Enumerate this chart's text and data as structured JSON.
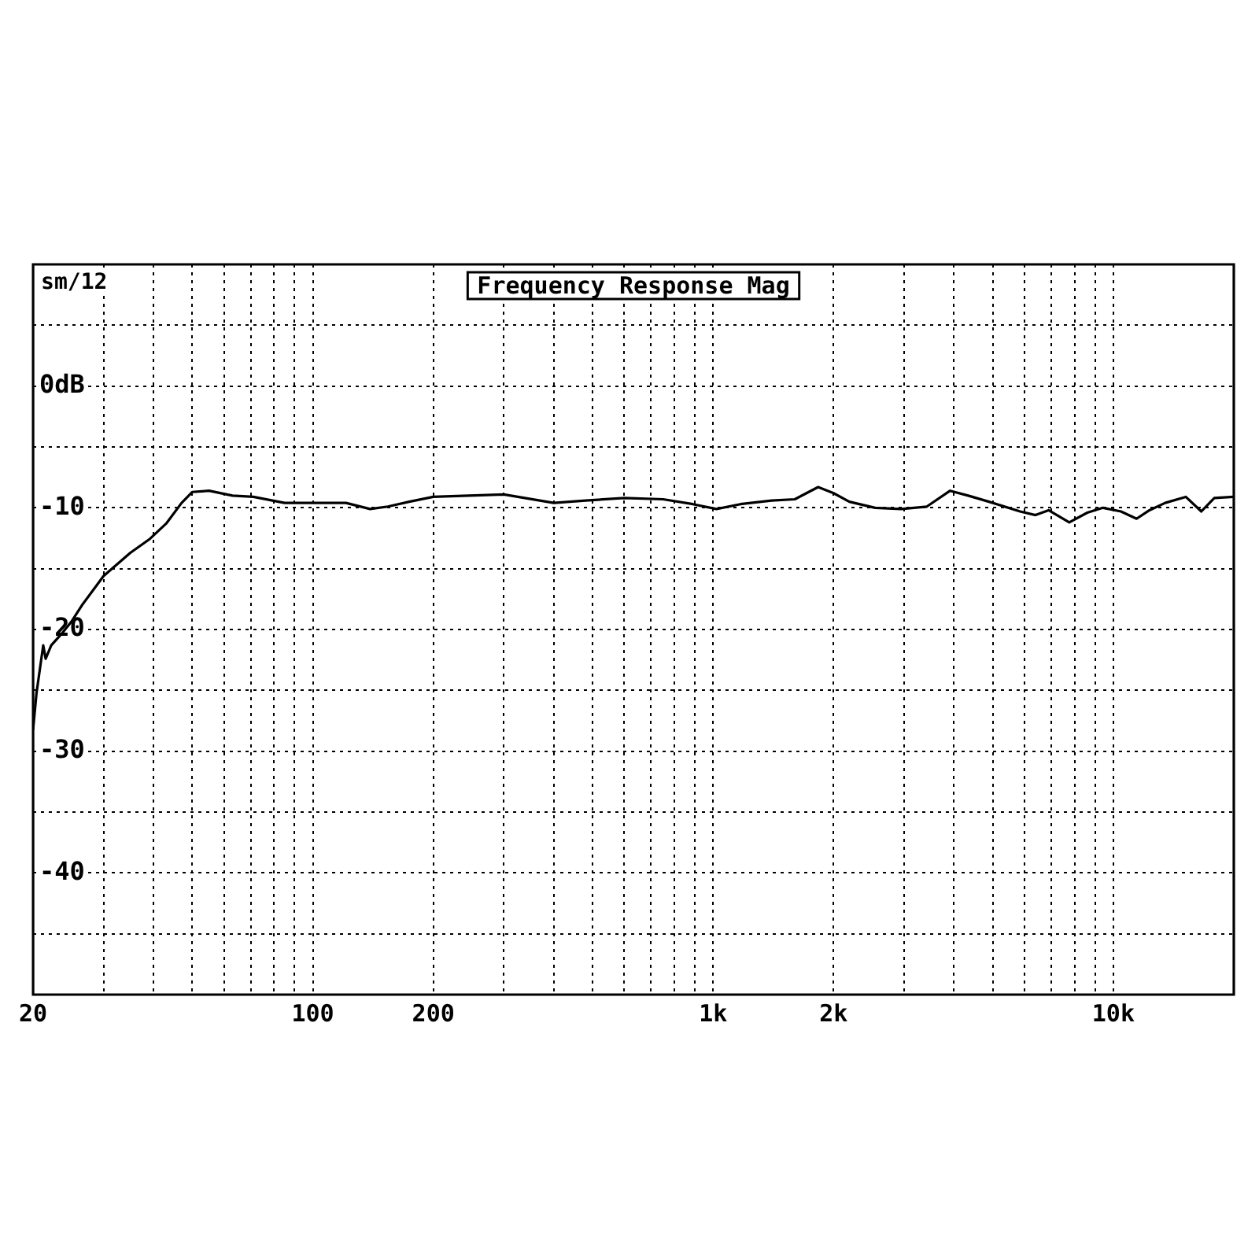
{
  "chart_data": {
    "type": "line",
    "title": "Frequency Response Mag",
    "annotations": [
      "sm/12"
    ],
    "x": [
      20,
      20.4,
      21.2,
      21.5,
      22.2,
      23.5,
      25,
      26.5,
      30,
      35,
      39,
      43,
      47,
      50,
      55,
      63,
      71,
      85,
      101,
      121,
      139,
      154,
      174,
      200,
      300,
      400,
      480,
      600,
      750,
      890,
      1020,
      1170,
      1400,
      1600,
      1830,
      2000,
      2190,
      2540,
      2950,
      3420,
      3910,
      4340,
      4890,
      5850,
      6390,
      6890,
      7760,
      8610,
      9420,
      10450,
      11430,
      12310,
      13470,
      15170,
      16590,
      17880,
      20000
    ],
    "series": [
      {
        "color": "#000000",
        "values": [
          -28.2,
          -25.2,
          -21.3,
          -22.4,
          -21.3,
          -20.4,
          -19.3,
          -18,
          -15.6,
          -13.7,
          -12.6,
          -11.3,
          -9.6,
          -8.7,
          -8.6,
          -9,
          -9.1,
          -9.6,
          -9.6,
          -9.6,
          -10.1,
          -9.9,
          -9.5,
          -9.1,
          -8.9,
          -9.6,
          -9.4,
          -9.2,
          -9.3,
          -9.7,
          -10.1,
          -9.7,
          -9.4,
          -9.3,
          -8.3,
          -8.8,
          -9.5,
          -10,
          -10.1,
          -9.9,
          -8.6,
          -9,
          -9.5,
          -10.3,
          -10.6,
          -10.2,
          -11.2,
          -10.4,
          -10,
          -10.3,
          -10.9,
          -10.2,
          -9.6,
          -9.1,
          -10.3,
          -9.2,
          -9.1
        ]
      }
    ],
    "log": "x",
    "xlim": [
      20,
      20000
    ],
    "xticks": [
      20,
      {
        "value": 30,
        "label": null
      },
      {
        "value": 40,
        "label": null
      },
      {
        "value": 50,
        "label": null
      },
      {
        "value": 60,
        "label": null
      },
      {
        "value": 70,
        "label": null
      },
      {
        "value": 80,
        "label": null
      },
      {
        "value": 90,
        "label": null
      },
      100,
      200,
      {
        "value": 300,
        "label": null
      },
      {
        "value": 400,
        "label": null
      },
      {
        "value": 500,
        "label": null
      },
      {
        "value": 600,
        "label": null
      },
      {
        "value": 700,
        "label": null
      },
      {
        "value": 800,
        "label": null
      },
      {
        "value": 900,
        "label": null
      },
      {
        "value": 1000,
        "label": "1k"
      },
      {
        "value": 2000,
        "label": "2k"
      },
      {
        "value": 3000,
        "label": null
      },
      {
        "value": 4000,
        "label": null
      },
      {
        "value": 5000,
        "label": null
      },
      {
        "value": 6000,
        "label": null
      },
      {
        "value": 7000,
        "label": null
      },
      {
        "value": 8000,
        "label": null
      },
      {
        "value": 9000,
        "label": null
      },
      {
        "value": 10000,
        "label": "10k"
      }
    ],
    "ylim": [
      -50,
      10
    ],
    "yticks": [
      {
        "value": 5,
        "label": null
      },
      {
        "value": 0,
        "label": "0dB"
      },
      {
        "value": -5,
        "label": null
      },
      -10,
      {
        "value": -15,
        "label": null
      },
      -20,
      {
        "value": -25,
        "label": null
      },
      -30,
      {
        "value": -35,
        "label": null
      },
      -40,
      {
        "value": -45,
        "label": null
      }
    ],
    "grid": true,
    "marker": "none",
    "line_style": "solid"
  }
}
